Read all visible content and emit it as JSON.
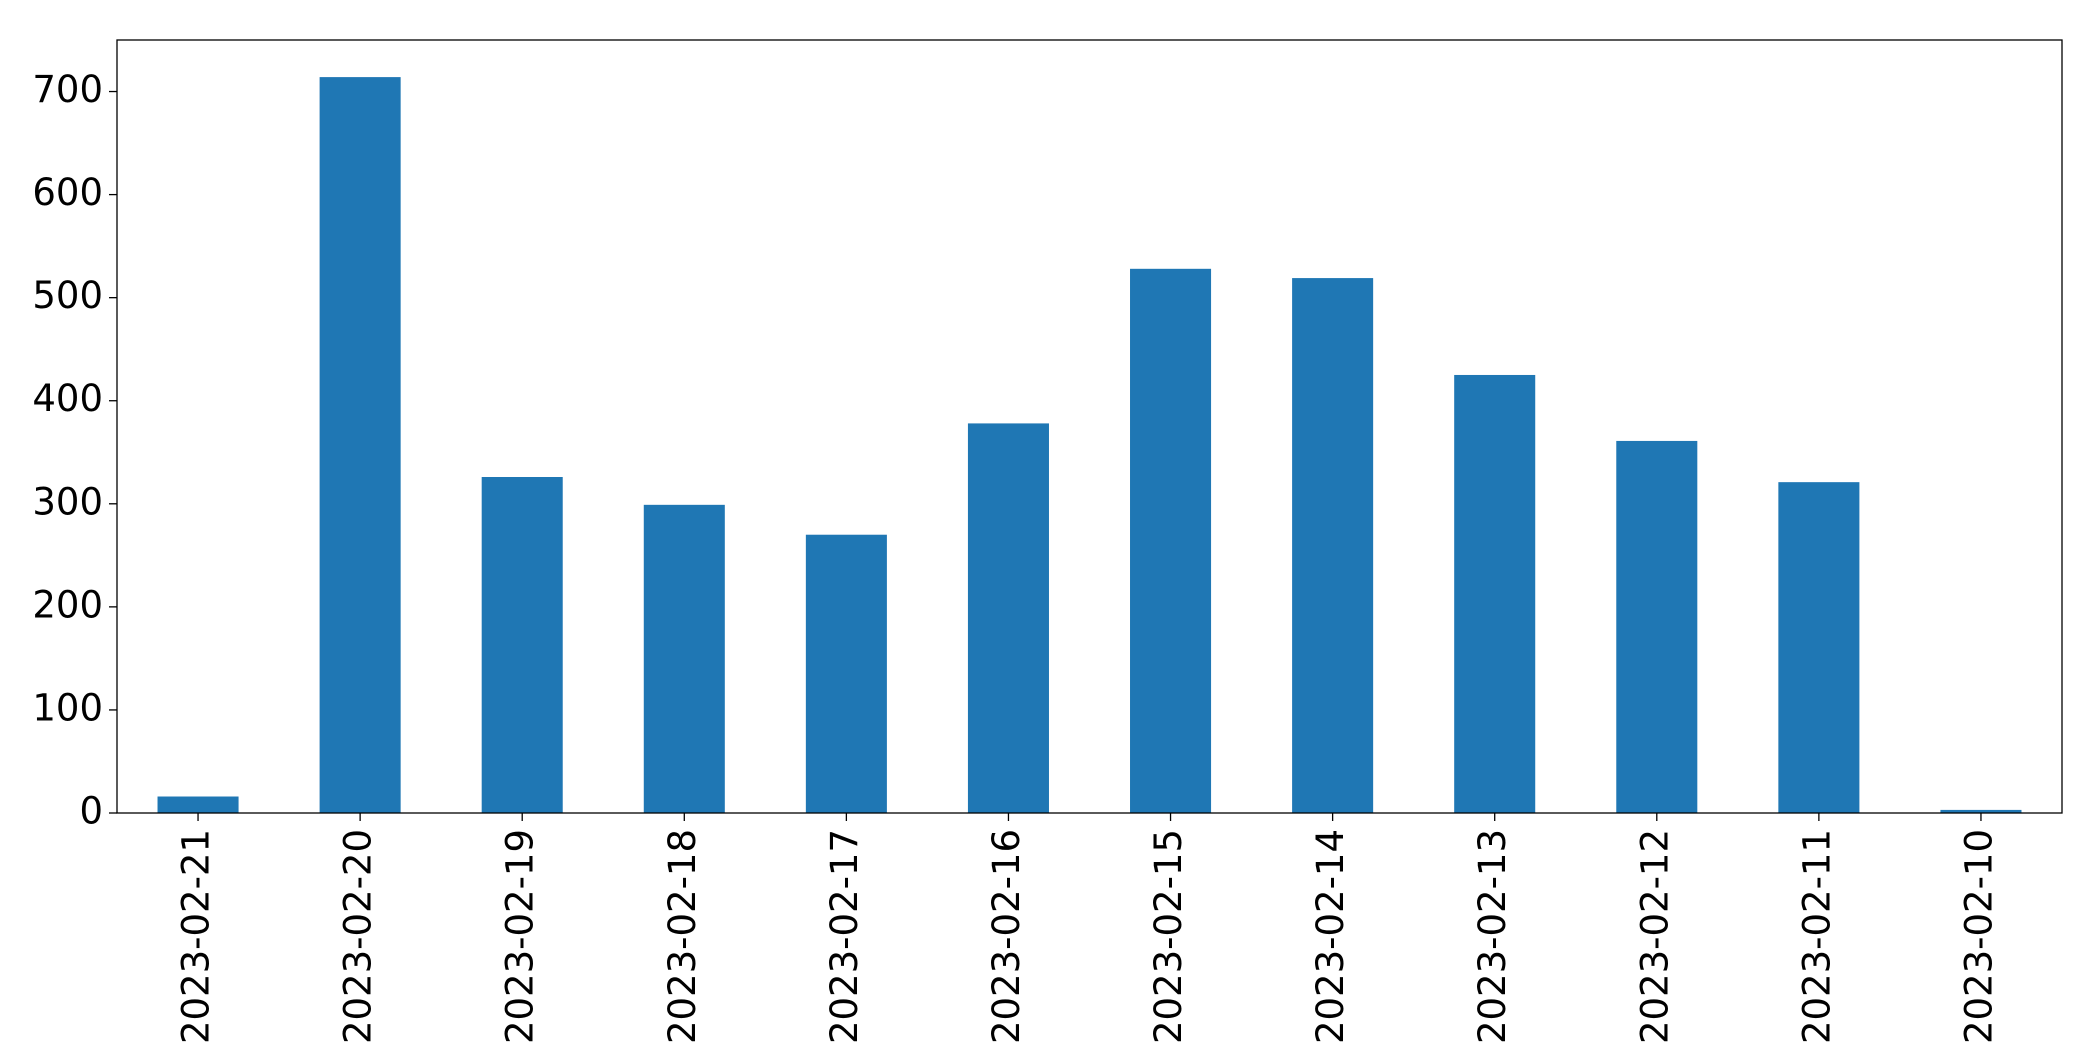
{
  "chart_data": {
    "type": "bar",
    "categories": [
      "2023-02-21",
      "2023-02-20",
      "2023-02-19",
      "2023-02-18",
      "2023-02-17",
      "2023-02-16",
      "2023-02-15",
      "2023-02-14",
      "2023-02-13",
      "2023-02-12",
      "2023-02-11",
      "2023-02-10"
    ],
    "values": [
      16,
      714,
      326,
      299,
      270,
      378,
      528,
      519,
      425,
      361,
      321,
      3
    ],
    "color": "#1f77b4",
    "ylim": [
      0,
      750
    ],
    "yticks": [
      0,
      100,
      200,
      300,
      400,
      500,
      600,
      700
    ],
    "grid": false
  }
}
